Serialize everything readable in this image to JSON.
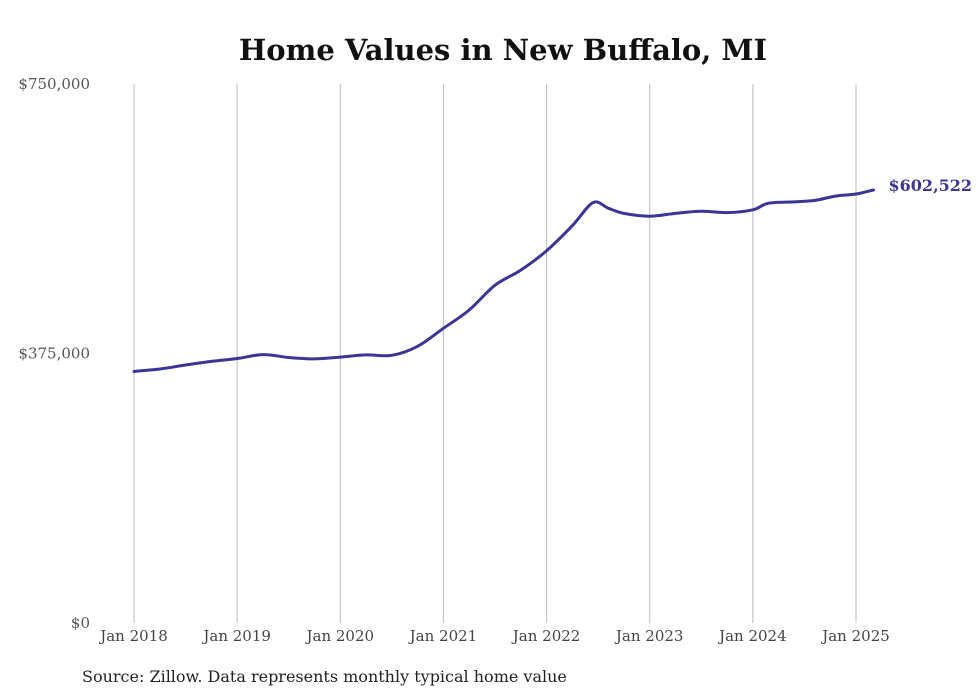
{
  "chart_data": {
    "type": "line",
    "title": "Home Values in New Buffalo, MI",
    "xlabel": "",
    "ylabel": "",
    "ylim": [
      0,
      750000
    ],
    "y_ticks": [
      {
        "value": 0,
        "label": "$0"
      },
      {
        "value": 375000,
        "label": "$375,000"
      },
      {
        "value": 750000,
        "label": "$750,000"
      }
    ],
    "x_ticks": [
      {
        "value": 2018.0,
        "label": "Jan 2018"
      },
      {
        "value": 2019.0,
        "label": "Jan 2019"
      },
      {
        "value": 2020.0,
        "label": "Jan 2020"
      },
      {
        "value": 2021.0,
        "label": "Jan 2021"
      },
      {
        "value": 2022.0,
        "label": "Jan 2022"
      },
      {
        "value": 2023.0,
        "label": "Jan 2023"
      },
      {
        "value": 2024.0,
        "label": "Jan 2024"
      },
      {
        "value": 2025.0,
        "label": "Jan 2025"
      }
    ],
    "grid": "vertical",
    "legend": "none",
    "series": [
      {
        "color": "#3a3596",
        "end_label": "$602,522",
        "points": [
          [
            2018.0,
            350000
          ],
          [
            2018.25,
            353500
          ],
          [
            2018.5,
            359000
          ],
          [
            2018.75,
            364000
          ],
          [
            2019.0,
            368000
          ],
          [
            2019.25,
            373500
          ],
          [
            2019.5,
            369500
          ],
          [
            2019.75,
            367500
          ],
          [
            2020.0,
            370000
          ],
          [
            2020.25,
            373000
          ],
          [
            2020.5,
            372500
          ],
          [
            2020.75,
            385000
          ],
          [
            2021.0,
            410000
          ],
          [
            2021.25,
            435500
          ],
          [
            2021.5,
            470000
          ],
          [
            2021.75,
            491000
          ],
          [
            2022.0,
            518000
          ],
          [
            2022.25,
            553000
          ],
          [
            2022.45,
            585000
          ],
          [
            2022.6,
            577000
          ],
          [
            2022.75,
            570000
          ],
          [
            2023.0,
            566000
          ],
          [
            2023.25,
            570000
          ],
          [
            2023.5,
            573000
          ],
          [
            2023.75,
            571000
          ],
          [
            2024.0,
            575000
          ],
          [
            2024.15,
            584000
          ],
          [
            2024.4,
            586000
          ],
          [
            2024.6,
            588000
          ],
          [
            2024.8,
            594000
          ],
          [
            2025.0,
            597000
          ],
          [
            2025.17,
            602522
          ]
        ]
      }
    ]
  },
  "source_text": "Source: Zillow. Data represents monthly typical home value"
}
